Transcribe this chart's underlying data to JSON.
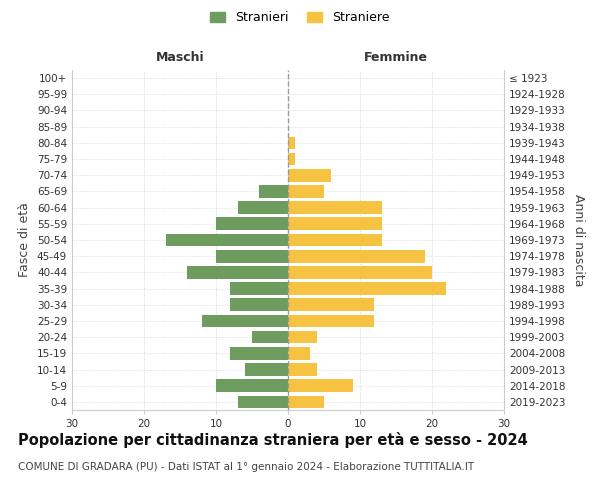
{
  "age_groups": [
    "0-4",
    "5-9",
    "10-14",
    "15-19",
    "20-24",
    "25-29",
    "30-34",
    "35-39",
    "40-44",
    "45-49",
    "50-54",
    "55-59",
    "60-64",
    "65-69",
    "70-74",
    "75-79",
    "80-84",
    "85-89",
    "90-94",
    "95-99",
    "100+"
  ],
  "birth_years": [
    "2019-2023",
    "2014-2018",
    "2009-2013",
    "2004-2008",
    "1999-2003",
    "1994-1998",
    "1989-1993",
    "1984-1988",
    "1979-1983",
    "1974-1978",
    "1969-1973",
    "1964-1968",
    "1959-1963",
    "1954-1958",
    "1949-1953",
    "1944-1948",
    "1939-1943",
    "1934-1938",
    "1929-1933",
    "1924-1928",
    "≤ 1923"
  ],
  "males": [
    7,
    10,
    6,
    8,
    5,
    12,
    8,
    8,
    14,
    10,
    17,
    10,
    7,
    4,
    0,
    0,
    0,
    0,
    0,
    0,
    0
  ],
  "females": [
    5,
    9,
    4,
    3,
    4,
    12,
    12,
    22,
    20,
    19,
    13,
    13,
    13,
    5,
    6,
    1,
    1,
    0,
    0,
    0,
    0
  ],
  "male_color": "#6e9b5e",
  "female_color": "#f5c242",
  "background_color": "#ffffff",
  "grid_color": "#cccccc",
  "center_line_color": "#999999",
  "title": "Popolazione per cittadinanza straniera per età e sesso - 2024",
  "subtitle": "COMUNE DI GRADARA (PU) - Dati ISTAT al 1° gennaio 2024 - Elaborazione TUTTITALIA.IT",
  "xlabel_left": "Maschi",
  "xlabel_right": "Femmine",
  "ylabel_left": "Fasce di età",
  "ylabel_right": "Anni di nascita",
  "legend_male": "Stranieri",
  "legend_female": "Straniere",
  "xlim": 30,
  "title_fontsize": 10.5,
  "subtitle_fontsize": 7.5,
  "tick_fontsize": 7.5,
  "label_fontsize": 9
}
